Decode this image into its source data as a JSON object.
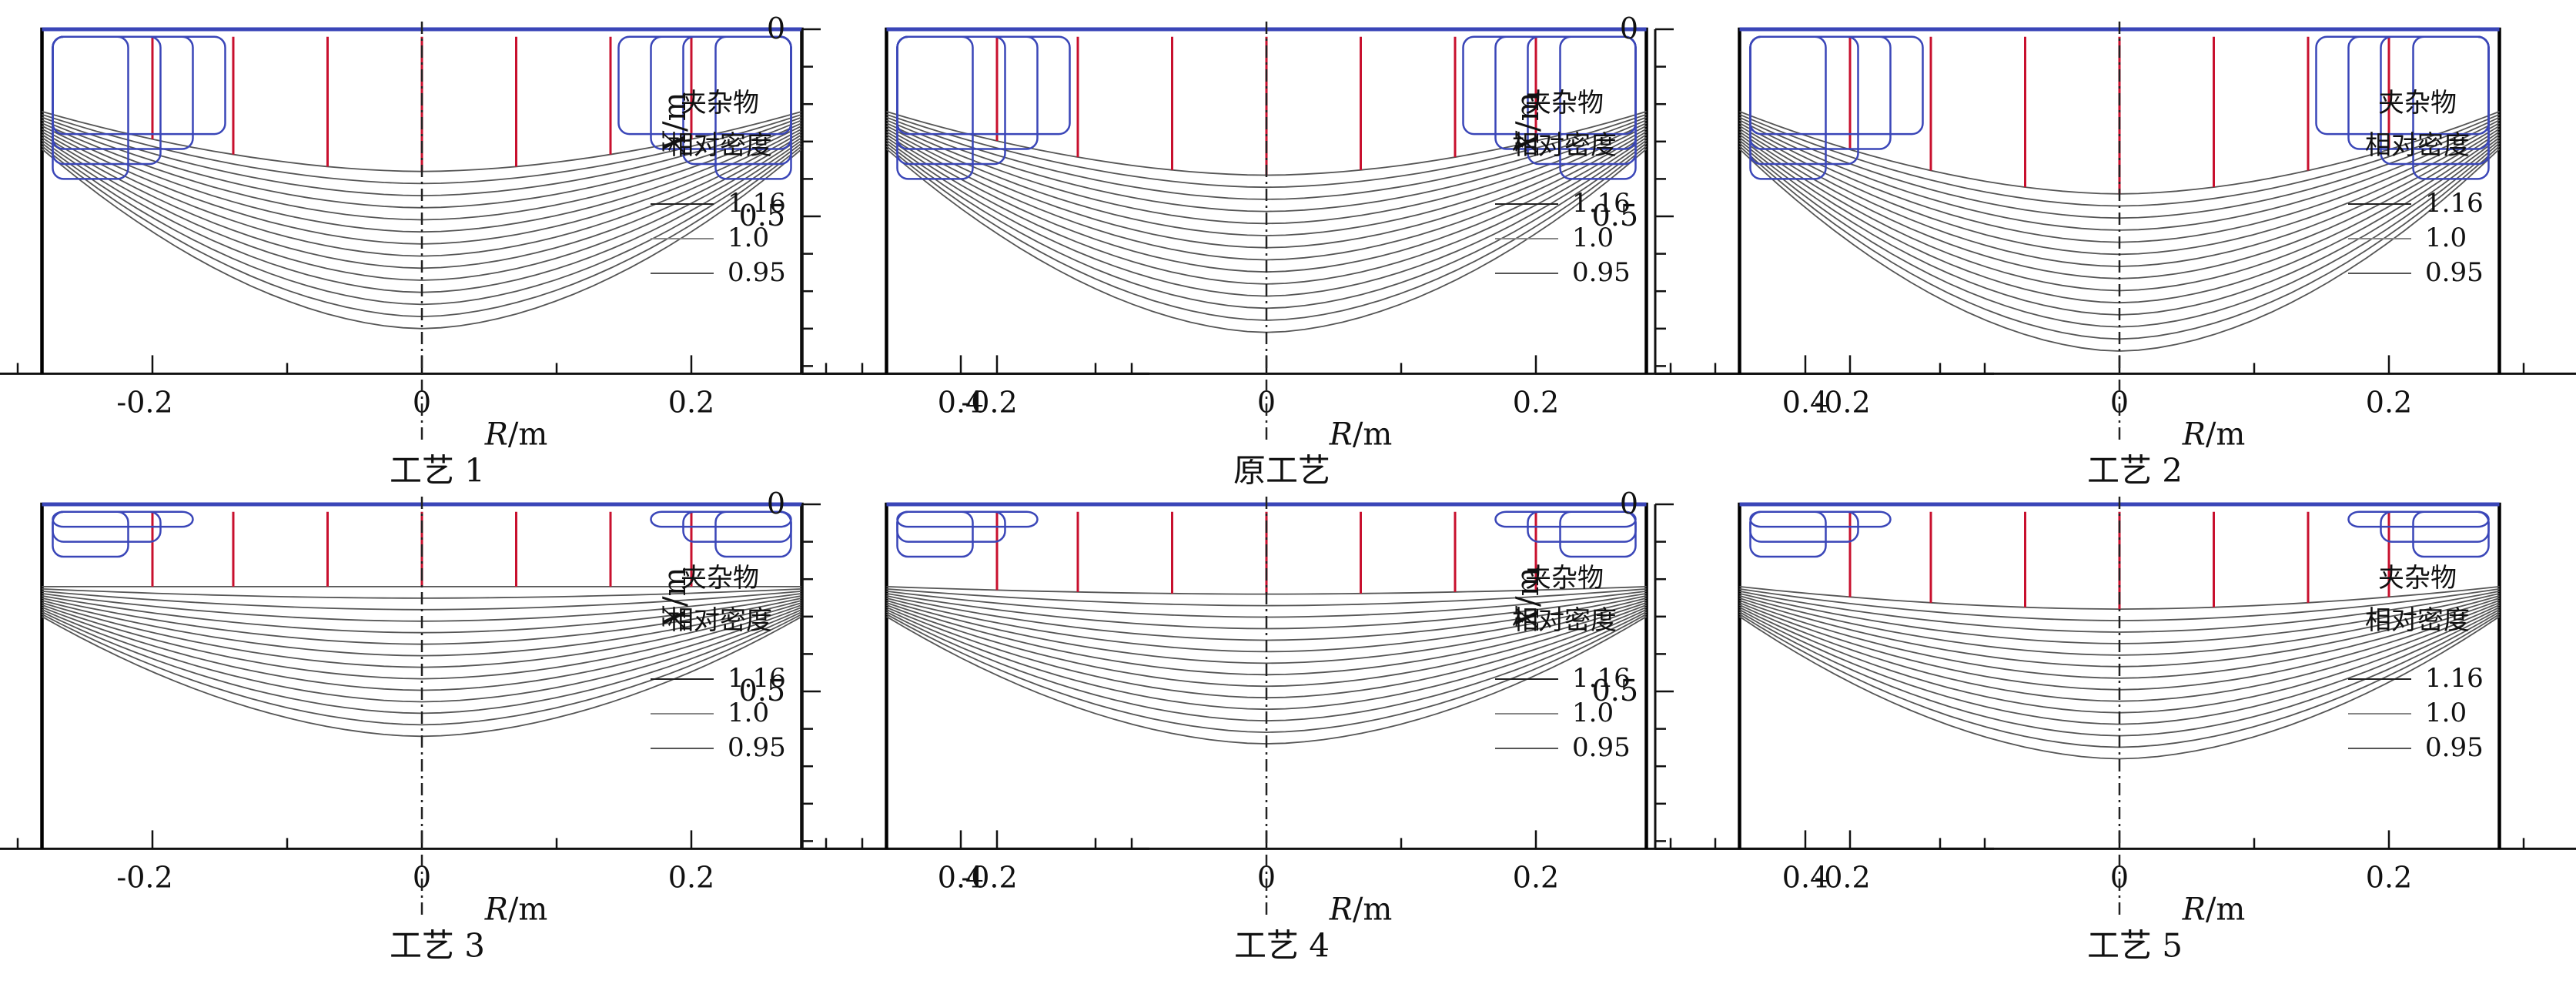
{
  "axes": {
    "x_label": "R",
    "y_label": "X",
    "unit": "/m",
    "x_ticks": [
      "-0.2",
      "0",
      "0.2",
      "0.4"
    ],
    "y_ticks": [
      "0",
      "0.5"
    ]
  },
  "legend": {
    "title_line1": "夹杂物",
    "title_line2": "相对密度",
    "entries": [
      "1.16",
      "1.0",
      "0.95"
    ]
  },
  "colors": {
    "outline": "#000000",
    "sump_contours": "#555555",
    "velocity_lines": "#c8102e",
    "inclusion_contours": "#3a46b8",
    "axis": "#111111"
  },
  "panels": [
    {
      "caption": "工艺 1",
      "sump_depth_m": 0.8
    },
    {
      "caption": "原工艺",
      "sump_depth_m": 0.81
    },
    {
      "caption": "工艺 2",
      "sump_depth_m": 0.86
    },
    {
      "caption": "工艺 3",
      "sump_depth_m": 0.62
    },
    {
      "caption": "工艺 4",
      "sump_depth_m": 0.64
    },
    {
      "caption": "工艺 5",
      "sump_depth_m": 0.68
    }
  ]
}
